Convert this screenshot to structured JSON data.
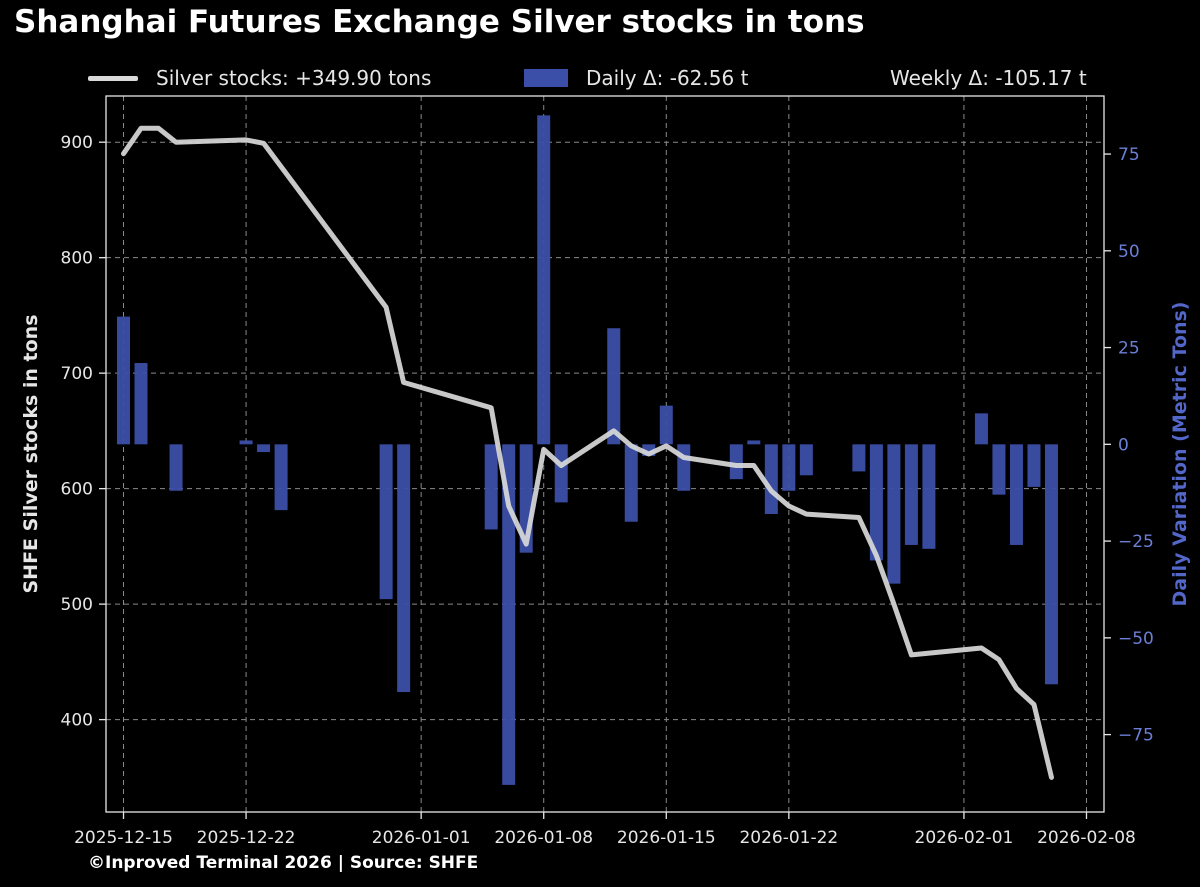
{
  "title": "Shanghai Futures Exchange Silver stocks in tons",
  "legend": {
    "stocks": "Silver stocks: +349.90 tons",
    "daily": "Daily Δ: -62.56 t",
    "weekly": "Weekly Δ: -105.17 t"
  },
  "footer": "©Inproved Terminal 2026 | Source: SHFE",
  "colors": {
    "line": "#d9d9d9",
    "bar": "#3b4fa8",
    "right_axis": "#5267c8",
    "background": "#000000",
    "grid": "#8a8a8a"
  },
  "chart_data": {
    "type": "line+bar",
    "x_range": [
      "2025-12-14",
      "2026-02-09"
    ],
    "xticks": [
      "2025-12-15",
      "2025-12-22",
      "2026-01-01",
      "2026-01-08",
      "2026-01-15",
      "2026-01-22",
      "2026-02-01",
      "2026-02-08"
    ],
    "left_axis": {
      "label": "SHFE Silver stocks in tons",
      "ylim": [
        320,
        940
      ],
      "ticks": [
        400,
        500,
        600,
        700,
        800,
        900
      ]
    },
    "right_axis": {
      "label": "Daily Variation (Metric Tons)",
      "ylim": [
        -95,
        90
      ],
      "ticks": [
        -75,
        -50,
        -25,
        0,
        25,
        50,
        75
      ]
    },
    "grid": true,
    "legend_position": "top",
    "line_series": {
      "name": "Silver stocks",
      "points": [
        [
          "2025-12-15",
          890
        ],
        [
          "2025-12-16",
          912
        ],
        [
          "2025-12-17",
          912
        ],
        [
          "2025-12-18",
          900
        ],
        [
          "2025-12-22",
          902
        ],
        [
          "2025-12-23",
          899
        ],
        [
          "2025-12-30",
          757
        ],
        [
          "2025-12-31",
          692
        ],
        [
          "2026-01-05",
          670
        ],
        [
          "2026-01-06",
          585
        ],
        [
          "2026-01-07",
          552
        ],
        [
          "2026-01-08",
          634
        ],
        [
          "2026-01-09",
          620
        ],
        [
          "2026-01-12",
          650
        ],
        [
          "2026-01-13",
          637
        ],
        [
          "2026-01-14",
          630
        ],
        [
          "2026-01-15",
          637
        ],
        [
          "2026-01-16",
          627
        ],
        [
          "2026-01-19",
          620
        ],
        [
          "2026-01-20",
          620
        ],
        [
          "2026-01-21",
          598
        ],
        [
          "2026-01-22",
          585
        ],
        [
          "2026-01-23",
          578
        ],
        [
          "2026-01-26",
          575
        ],
        [
          "2026-01-27",
          542
        ],
        [
          "2026-01-28",
          500
        ],
        [
          "2026-01-29",
          456
        ],
        [
          "2026-02-02",
          462
        ],
        [
          "2026-02-03",
          452
        ],
        [
          "2026-02-04",
          427
        ],
        [
          "2026-02-05",
          413
        ],
        [
          "2026-02-06",
          350
        ]
      ]
    },
    "bar_series": {
      "name": "Daily Δ",
      "points": [
        [
          "2025-12-15",
          33
        ],
        [
          "2025-12-16",
          21
        ],
        [
          "2025-12-18",
          -12
        ],
        [
          "2025-12-22",
          1
        ],
        [
          "2025-12-23",
          -2
        ],
        [
          "2025-12-24",
          -17
        ],
        [
          "2025-12-30",
          -40
        ],
        [
          "2025-12-31",
          -64
        ],
        [
          "2026-01-05",
          -22
        ],
        [
          "2026-01-06",
          -88
        ],
        [
          "2026-01-07",
          -28
        ],
        [
          "2026-01-08",
          85
        ],
        [
          "2026-01-09",
          -15
        ],
        [
          "2026-01-12",
          30
        ],
        [
          "2026-01-13",
          -20
        ],
        [
          "2026-01-14",
          -3
        ],
        [
          "2026-01-15",
          10
        ],
        [
          "2026-01-16",
          -12
        ],
        [
          "2026-01-19",
          -9
        ],
        [
          "2026-01-20",
          1
        ],
        [
          "2026-01-21",
          -18
        ],
        [
          "2026-01-22",
          -12
        ],
        [
          "2026-01-23",
          -8
        ],
        [
          "2026-01-26",
          -7
        ],
        [
          "2026-01-27",
          -30
        ],
        [
          "2026-01-28",
          -36
        ],
        [
          "2026-01-29",
          -26
        ],
        [
          "2026-01-30",
          -27
        ],
        [
          "2026-02-02",
          8
        ],
        [
          "2026-02-03",
          -13
        ],
        [
          "2026-02-04",
          -26
        ],
        [
          "2026-02-05",
          -11
        ],
        [
          "2026-02-06",
          -62
        ]
      ]
    }
  }
}
